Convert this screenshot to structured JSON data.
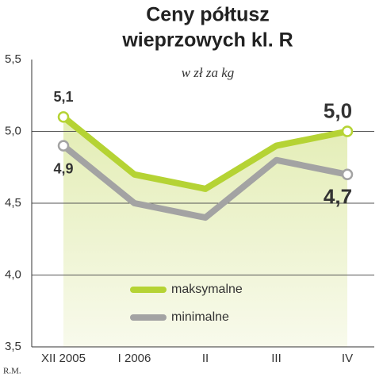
{
  "chart_data": {
    "type": "line",
    "title": [
      "Ceny półtusz",
      "wieprzowych kl. R"
    ],
    "subtitle": "w zł za kg",
    "credit": "R.M.",
    "categories": [
      "XII 2005",
      "I 2006",
      "II",
      "III",
      "IV"
    ],
    "series": [
      {
        "name": "maksymalne",
        "color": "#b5d334",
        "values": [
          5.1,
          4.7,
          4.6,
          4.9,
          5.0
        ],
        "value_labels": [
          "5,1",
          null,
          null,
          null,
          "5,0"
        ]
      },
      {
        "name": "minimalne",
        "color": "#a3a3a3",
        "values": [
          4.9,
          4.5,
          4.4,
          4.8,
          4.7
        ],
        "value_labels": [
          "4,9",
          null,
          null,
          null,
          "4,7"
        ]
      }
    ],
    "ylim": [
      3.5,
      5.5
    ],
    "yticks": [
      {
        "value": 3.5,
        "label": "3,5"
      },
      {
        "value": 4.0,
        "label": "4,0"
      },
      {
        "value": 4.5,
        "label": "4,5"
      },
      {
        "value": 5.0,
        "label": "5,0"
      },
      {
        "value": 5.5,
        "label": "5,5"
      }
    ],
    "grid": true
  }
}
